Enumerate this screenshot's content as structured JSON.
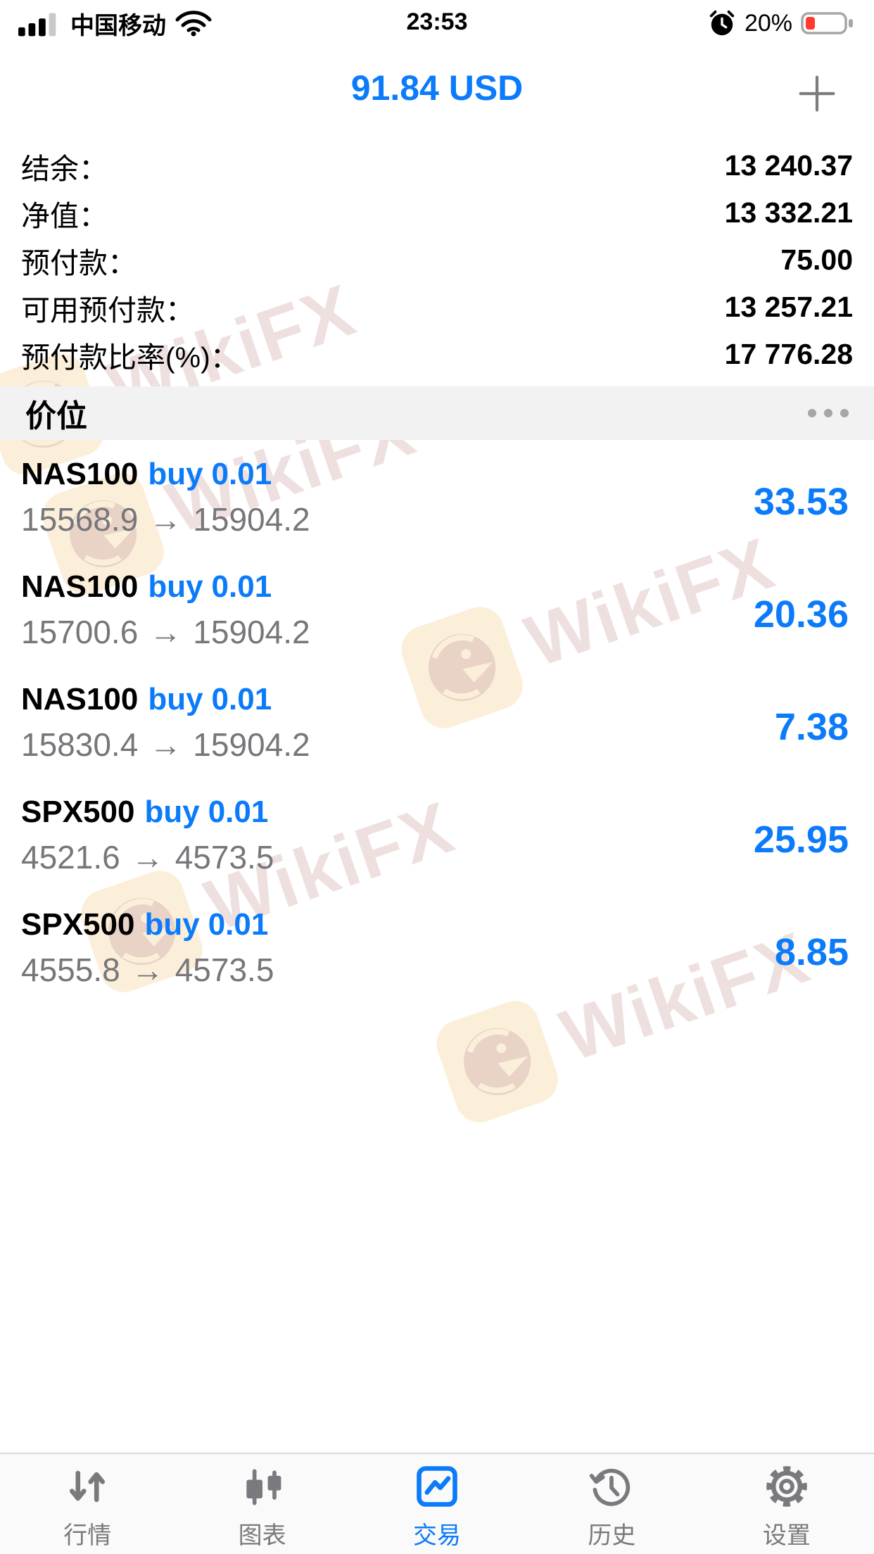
{
  "status_bar": {
    "carrier": "中国移动",
    "time": "23:53",
    "battery_percent": "20%",
    "signal_icon": "cellular-signal-icon",
    "wifi_icon": "wifi-icon",
    "alarm_icon": "alarm-clock-icon",
    "battery_icon": "battery-low-icon"
  },
  "header": {
    "title": "91.84 USD",
    "add_icon": "plus-icon"
  },
  "account": {
    "rows": [
      {
        "label": "结余：",
        "value": "13 240.37"
      },
      {
        "label": "净值：",
        "value": "13 332.21"
      },
      {
        "label": "预付款：",
        "value": "75.00"
      },
      {
        "label": "可用预付款：",
        "value": "13 257.21"
      },
      {
        "label": "预付款比率(%)：",
        "value": "17 776.28"
      }
    ]
  },
  "positions_section": {
    "title": "价位",
    "menu_icon": "ellipsis-icon"
  },
  "positions": [
    {
      "symbol": "NAS100",
      "side": "buy",
      "volume": "0.01",
      "open_price": "15568.9",
      "arrow": "→",
      "current_price": "15904.2",
      "profit": "33.53"
    },
    {
      "symbol": "NAS100",
      "side": "buy",
      "volume": "0.01",
      "open_price": "15700.6",
      "arrow": "→",
      "current_price": "15904.2",
      "profit": "20.36"
    },
    {
      "symbol": "NAS100",
      "side": "buy",
      "volume": "0.01",
      "open_price": "15830.4",
      "arrow": "→",
      "current_price": "15904.2",
      "profit": "7.38"
    },
    {
      "symbol": "SPX500",
      "side": "buy",
      "volume": "0.01",
      "open_price": "4521.6",
      "arrow": "→",
      "current_price": "4573.5",
      "profit": "25.95"
    },
    {
      "symbol": "SPX500",
      "side": "buy",
      "volume": "0.01",
      "open_price": "4555.8",
      "arrow": "→",
      "current_price": "4573.5",
      "profit": "8.85"
    }
  ],
  "watermark": {
    "text": "WikiFX",
    "logo_icon": "wikifx-eagle-logo-icon"
  },
  "tab_bar": {
    "items": [
      {
        "key": "quotes",
        "label": "行情",
        "icon": "updown-arrows-icon",
        "active": false
      },
      {
        "key": "charts",
        "label": "图表",
        "icon": "candlestick-chart-icon",
        "active": false
      },
      {
        "key": "trade",
        "label": "交易",
        "icon": "trade-line-chart-icon",
        "active": true
      },
      {
        "key": "history",
        "label": "历史",
        "icon": "history-clock-icon",
        "active": false
      },
      {
        "key": "settings",
        "label": "设置",
        "icon": "settings-gear-icon",
        "active": false
      }
    ]
  },
  "colors": {
    "accent_blue": "#0b7bfa",
    "price_gray": "#76767b",
    "band_bg": "#f2f2f3",
    "battery_red": "#ff3b30",
    "tab_inactive": "#7a7a7e",
    "watermark_text": "#efe0e0",
    "watermark_logo_bg": "#fbefd9",
    "watermark_logo_fg": "#e8d3c6"
  }
}
